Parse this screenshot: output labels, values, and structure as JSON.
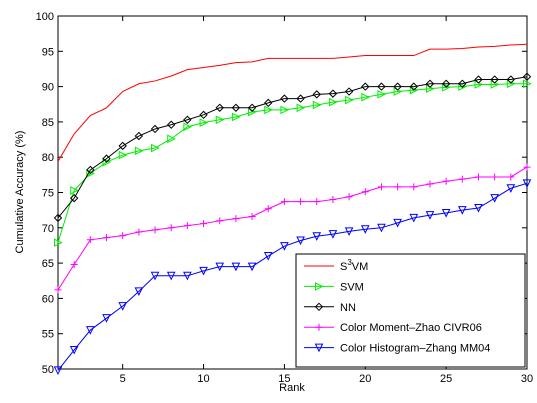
{
  "chart_data": {
    "type": "line",
    "title": "",
    "xlabel": "Rank",
    "ylabel": "Cumulative Accuracy (%)",
    "xlim": [
      1,
      30
    ],
    "ylim": [
      50,
      100
    ],
    "xticks": [
      5,
      10,
      15,
      20,
      25,
      30
    ],
    "yticks": [
      50,
      55,
      60,
      65,
      70,
      75,
      80,
      85,
      90,
      95,
      100
    ],
    "grid": false,
    "legend_position": "bottom-right",
    "x": [
      1,
      2,
      3,
      4,
      5,
      6,
      7,
      8,
      9,
      10,
      11,
      12,
      13,
      14,
      15,
      16,
      17,
      18,
      19,
      20,
      21,
      22,
      23,
      24,
      25,
      26,
      27,
      28,
      29,
      30
    ],
    "series": [
      {
        "name": "S",
        "name_sup": "3",
        "name_suffix": "VM",
        "color": "#ff0000",
        "marker": "none",
        "values": [
          79.4,
          83.3,
          85.9,
          87.0,
          89.3,
          90.4,
          90.8,
          91.5,
          92.4,
          92.7,
          93.0,
          93.4,
          93.5,
          94.0,
          94.0,
          94.0,
          94.0,
          94.0,
          94.2,
          94.4,
          94.4,
          94.4,
          94.4,
          95.3,
          95.3,
          95.4,
          95.6,
          95.7,
          95.9,
          96.0
        ]
      },
      {
        "name": "SVM",
        "color": "#00ee00",
        "marker": "triangle-right",
        "values": [
          67.9,
          75.3,
          77.7,
          79.3,
          80.3,
          80.9,
          81.3,
          82.6,
          84.3,
          84.9,
          85.3,
          85.7,
          86.4,
          86.7,
          86.7,
          87.0,
          87.4,
          87.8,
          88.1,
          88.5,
          88.9,
          89.3,
          89.5,
          89.7,
          89.9,
          90.0,
          90.3,
          90.3,
          90.4,
          90.4
        ]
      },
      {
        "name": "NN",
        "color": "#000000",
        "marker": "diamond",
        "values": [
          71.4,
          74.2,
          78.2,
          79.8,
          81.6,
          83.0,
          84.0,
          84.6,
          85.3,
          86.0,
          87.0,
          87.0,
          87.0,
          87.7,
          88.3,
          88.3,
          88.9,
          89.0,
          89.3,
          90.0,
          90.0,
          90.0,
          90.0,
          90.4,
          90.4,
          90.4,
          91.0,
          91.0,
          91.0,
          91.4
        ]
      },
      {
        "name": "Color Moment–Zhao CIVR06",
        "color": "#ff00ff",
        "marker": "plus",
        "values": [
          61.2,
          64.8,
          68.3,
          68.6,
          68.9,
          69.4,
          69.7,
          70.0,
          70.3,
          70.6,
          71.0,
          71.3,
          71.6,
          72.7,
          73.7,
          73.7,
          73.7,
          74.0,
          74.4,
          75.1,
          75.8,
          75.8,
          75.8,
          76.2,
          76.6,
          76.9,
          77.2,
          77.2,
          77.2,
          78.6
        ]
      },
      {
        "name": "Color Histogram–Zhang MM04",
        "color": "#0000ff",
        "marker": "triangle-down",
        "values": [
          49.8,
          52.7,
          55.5,
          57.2,
          58.9,
          61.0,
          63.2,
          63.2,
          63.2,
          63.9,
          64.5,
          64.5,
          64.5,
          66.0,
          67.4,
          68.2,
          68.8,
          69.1,
          69.5,
          69.8,
          70.0,
          70.7,
          71.4,
          71.8,
          72.1,
          72.5,
          72.8,
          74.2,
          75.6,
          76.3
        ]
      }
    ]
  }
}
